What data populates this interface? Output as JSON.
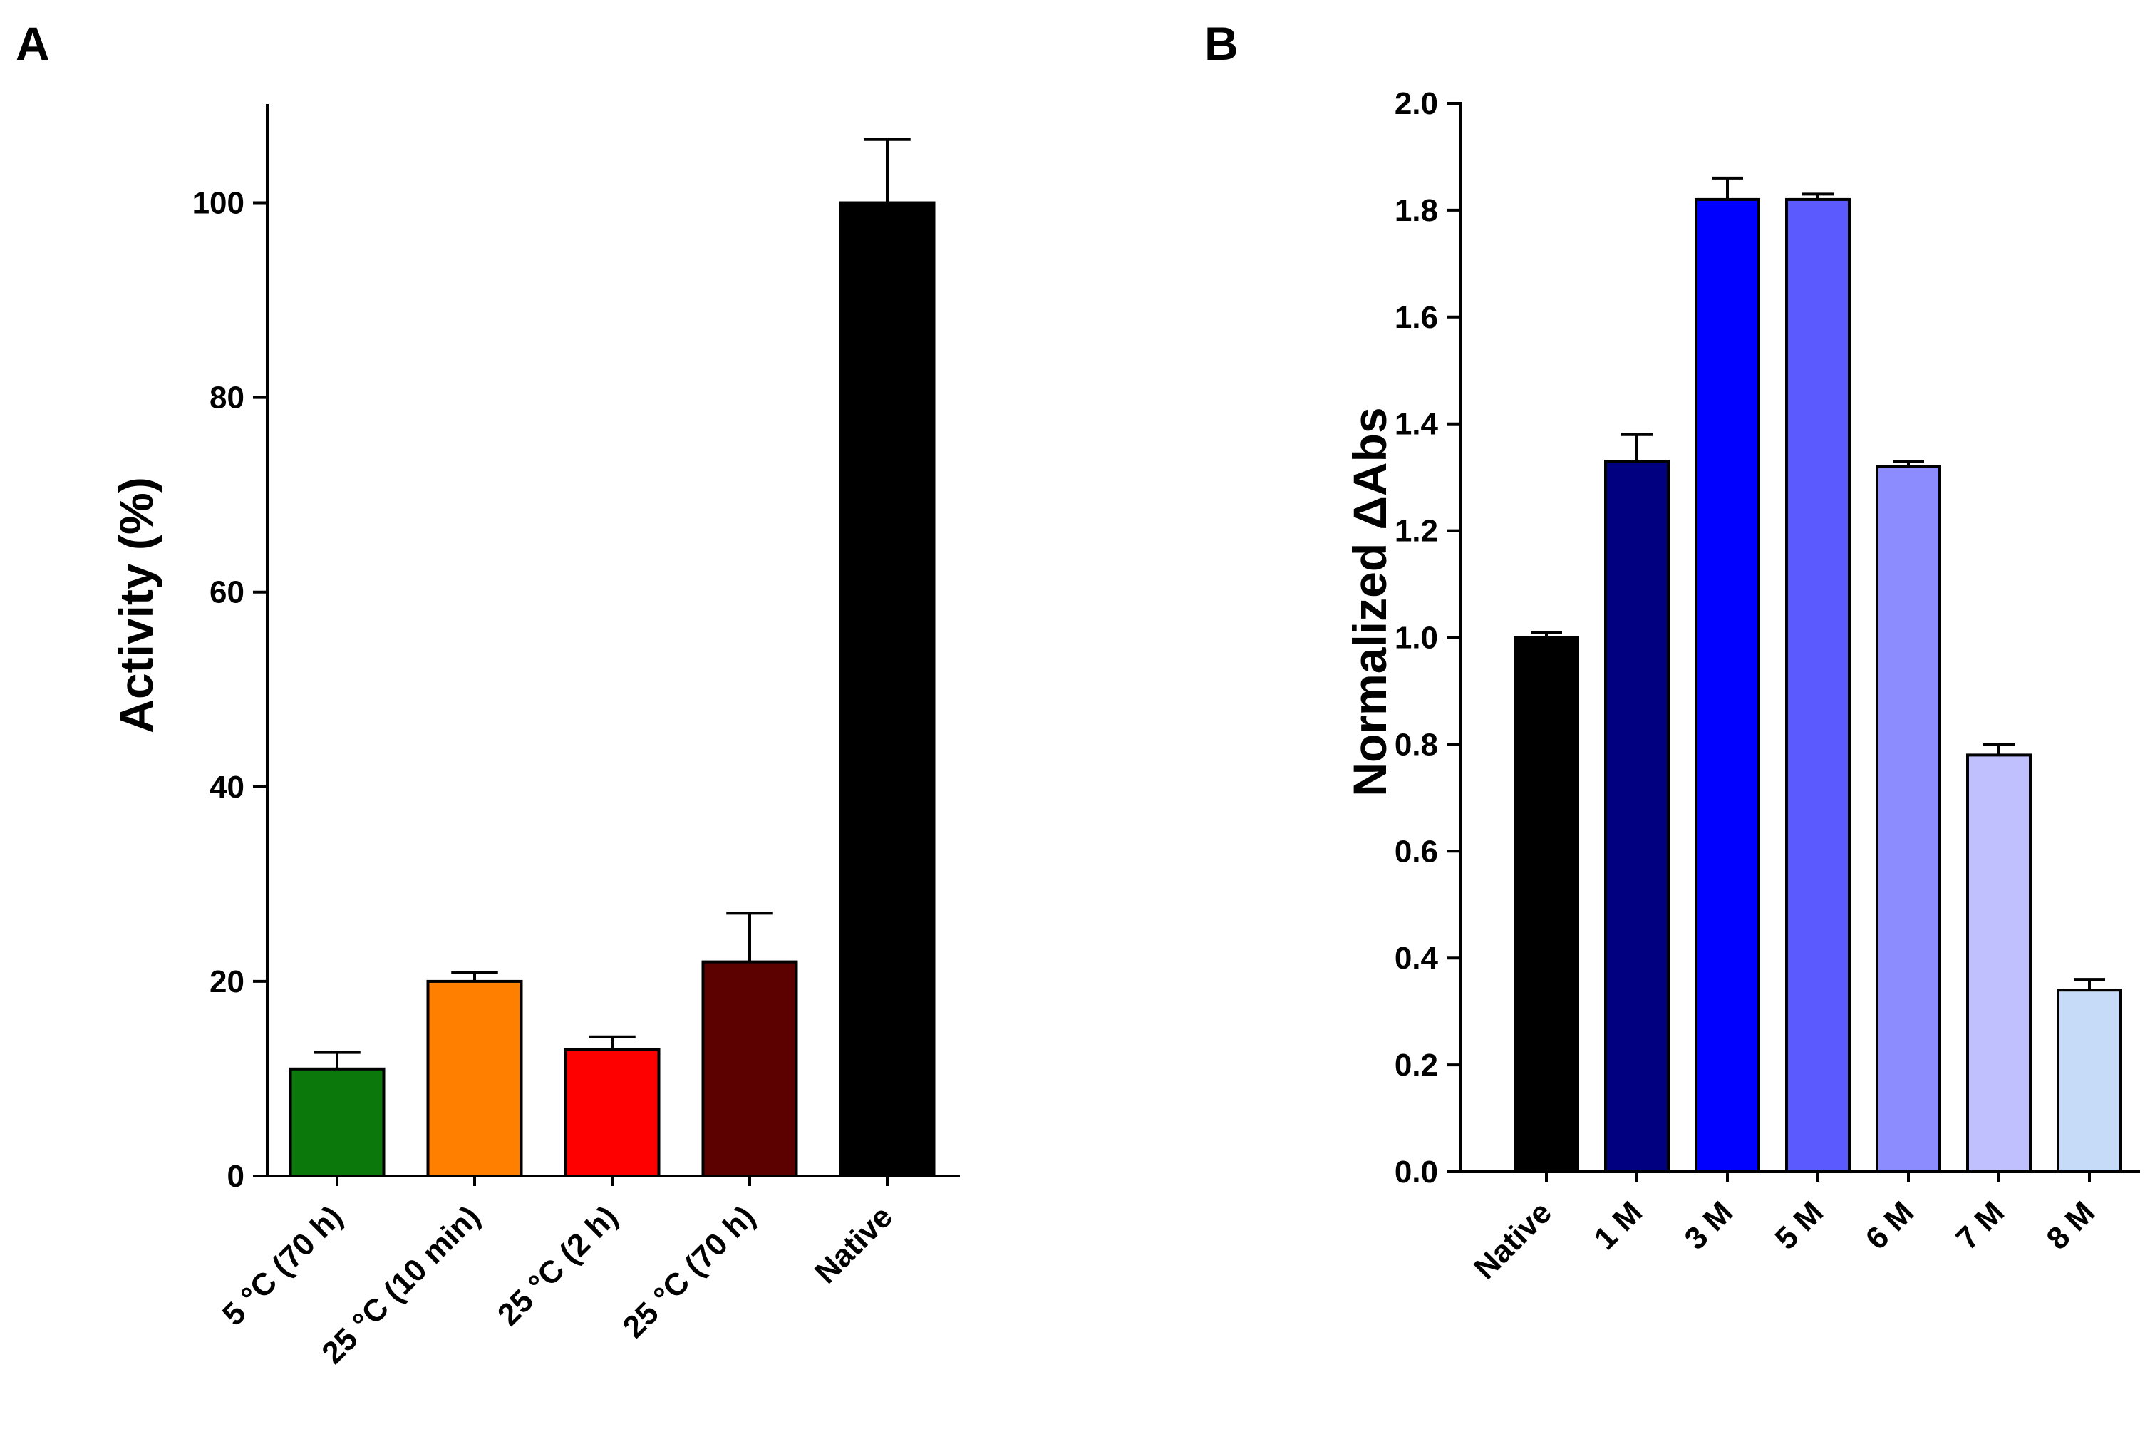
{
  "figure": {
    "panels": [
      "A",
      "B"
    ]
  },
  "chart_data": [
    {
      "panel": "A",
      "type": "bar",
      "title": "",
      "xlabel": "",
      "ylabel": "Activity (%)",
      "ylim": [
        0,
        110
      ],
      "yticks": [
        0,
        20,
        40,
        60,
        80,
        100
      ],
      "categories": [
        "5 °C (70 h)",
        "25 °C (10 min)",
        "25 °C (2 h)",
        "25 °C (70 h)",
        "Native"
      ],
      "values": [
        11,
        20,
        13,
        22,
        100
      ],
      "errors": [
        1.7,
        0.9,
        1.3,
        5,
        6.5
      ],
      "colors": [
        "#0a780a",
        "#ff8000",
        "#ff0000",
        "#5c0000",
        "#000000"
      ]
    },
    {
      "panel": "B",
      "type": "bar",
      "title": "",
      "xlabel": "",
      "ylabel": "Normalized ΔAbs",
      "ylim": [
        0,
        2.0
      ],
      "yticks": [
        "0.0",
        "0.2",
        "0.4",
        "0.6",
        "0.8",
        "1.0",
        "1.2",
        "1.4",
        "1.6",
        "1.8",
        "2.0"
      ],
      "categories": [
        "Native",
        "1 M",
        "3 M",
        "5 M",
        "6 M",
        "7 M",
        "8 M"
      ],
      "values": [
        1.0,
        1.33,
        1.82,
        1.82,
        1.32,
        0.78,
        0.34
      ],
      "errors": [
        0.01,
        0.05,
        0.04,
        0.01,
        0.01,
        0.02,
        0.02
      ],
      "colors": [
        "#000000",
        "#000080",
        "#0000ff",
        "#5a5aff",
        "#8c8cff",
        "#c0c0ff",
        "#c6dbf7"
      ]
    }
  ]
}
